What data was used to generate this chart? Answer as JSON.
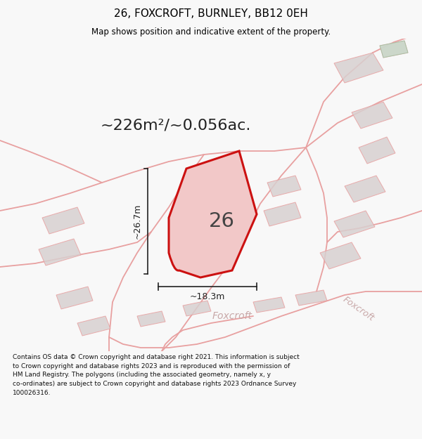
{
  "title": "26, FOXCROFT, BURNLEY, BB12 0EH",
  "subtitle": "Map shows position and indicative extent of the property.",
  "area_label": "~226m²/~0.056ac.",
  "width_label": "~18.3m",
  "height_label": "~26.7m",
  "plot_label": "26",
  "road_label": "Foxcroft",
  "road_label2": "Foxcroft",
  "footer": "Contains OS data © Crown copyright and database right 2021. This information is subject\nto Crown copyright and database rights 2023 and is reproduced with the permission of\nHM Land Registry. The polygons (including the associated geometry, namely x, y\nco-ordinates) are subject to Crown copyright and database rights 2023 Ordnance Survey\n100026316.",
  "bg_color": "#f8f8f8",
  "map_bg": "#ffffff",
  "road_color": "#e8a0a0",
  "plot_color": "#cc1111",
  "plot_fill": "#f2c8c8",
  "building_fill": "#d8d0d0",
  "building_edge": "#e8a0a0",
  "dim_line_color": "#222222",
  "title_color": "#000000",
  "road_label_color": "#c8a8a8"
}
